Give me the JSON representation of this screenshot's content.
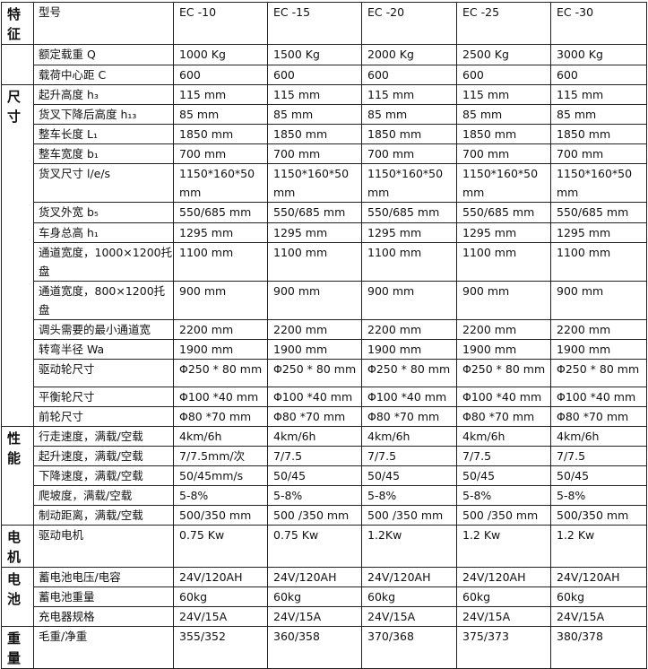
{
  "header": {
    "group": "特征",
    "label": "型号",
    "models": [
      "EC -10",
      "EC -15",
      "EC -20",
      "EC -25",
      "EC -30"
    ]
  },
  "groups": [
    {
      "name": "",
      "rows": [
        {
          "label": "额定载重 Q",
          "values": [
            "1000 Kg",
            "1500 Kg",
            "2000 Kg",
            "2500 Kg",
            "3000 Kg"
          ]
        },
        {
          "label": "载荷中心距 C",
          "values": [
            "600",
            "600",
            "600",
            "600",
            "600"
          ]
        }
      ]
    },
    {
      "name": "尺寸",
      "rows": [
        {
          "label": "起升高度 h₃",
          "values": [
            "115 mm",
            "115 mm",
            "115 mm",
            "115 mm",
            "115 mm"
          ]
        },
        {
          "label": "货叉下降后高度 h₁₃",
          "values": [
            "85 mm",
            "85 mm",
            "85 mm",
            "85 mm",
            "85 mm"
          ]
        },
        {
          "label": "整车长度 L₁",
          "values": [
            "1850 mm",
            "1850 mm",
            "1850 mm",
            "1850 mm",
            "1850 mm"
          ]
        },
        {
          "label": "整车宽度 b₁",
          "values": [
            "700 mm",
            "700 mm",
            "700 mm",
            "700 mm",
            "700 mm"
          ]
        },
        {
          "label": "货叉尺寸 l/e/s",
          "values": [
            "1150*160*50 mm",
            "1150*160*50 mm",
            "1150*160*50 mm",
            "1150*160*50 mm",
            "1150*160*50 mm"
          ]
        },
        {
          "label": "货叉外宽 b₅",
          "values": [
            "550/685 mm",
            "550/685 mm",
            "550/685 mm",
            "550/685 mm",
            "550/685 mm"
          ]
        },
        {
          "label": "车身总高 h₁",
          "values": [
            "1295 mm",
            "1295 mm",
            "1295 mm",
            "1295 mm",
            "1295 mm"
          ]
        },
        {
          "label": "通道宽度，1000×1200托盘",
          "values": [
            "1100 mm",
            "1100 mm",
            "1100 mm",
            "1100 mm",
            "1100 mm"
          ]
        },
        {
          "label": "通道宽度，800×1200托盘",
          "values": [
            "900 mm",
            "900 mm",
            "900 mm",
            "900 mm",
            "900 mm"
          ]
        },
        {
          "label": "调头需要的最小通道宽",
          "values": [
            "2200 mm",
            "2200 mm",
            "2200 mm",
            "2200 mm",
            "2200 mm"
          ]
        },
        {
          "label": "转弯半径 Wa",
          "values": [
            "1900 mm",
            "1900 mm",
            "1900 mm",
            "1900 mm",
            "1900 mm"
          ]
        },
        {
          "label": "驱动轮尺寸",
          "values": [
            "Φ250 * 80 mm",
            "Φ250 * 80 mm",
            "Φ250 * 80 mm",
            "Φ250 * 80 mm",
            "Φ250 * 80 mm"
          ]
        },
        {
          "label": "平衡轮尺寸",
          "values": [
            "Φ100 *40 mm",
            "Φ100 *40 mm",
            "Φ100 *40 mm",
            "Φ100 *40 mm",
            "Φ100 *40 mm"
          ]
        },
        {
          "label": "前轮尺寸",
          "values": [
            "Φ80 *70 mm",
            "Φ80 *70 mm",
            "Φ80 *70 mm",
            "Φ80 *70 mm",
            "Φ80 *70 mm"
          ]
        }
      ]
    },
    {
      "name": "性能",
      "rows": [
        {
          "label": "行走速度，满载/空载",
          "values": [
            "4km/6h",
            "4km/6h",
            "4km/6h",
            "4km/6h",
            "4km/6h"
          ]
        },
        {
          "label": "起升速度，满载/空载",
          "values": [
            "7/7.5mm/次",
            "7/7.5",
            "7/7.5",
            "7/7.5",
            "7/7.5"
          ]
        },
        {
          "label": "下降速度，满载/空载",
          "values": [
            "50/45mm/s",
            "50/45",
            "50/45",
            "50/45",
            "50/45"
          ]
        },
        {
          "label": "爬坡度，满载/空载",
          "values": [
            "5-8%",
            "5-8%",
            "5-8%",
            "5-8%",
            "5-8%"
          ]
        },
        {
          "label": "制动距离，满载/空载",
          "values": [
            "500/350 mm",
            "500 /350 mm",
            "500 /350 mm",
            "500 /350 mm",
            "500/350 mm"
          ]
        }
      ]
    },
    {
      "name": "电机",
      "rows": [
        {
          "label": "驱动电机",
          "values": [
            "0.75 Kw",
            "0.75 Kw",
            "1.2Kw",
            "1.2 Kw",
            "1.2 Kw"
          ]
        }
      ]
    },
    {
      "name": "电池",
      "rows": [
        {
          "label": "蓄电池电压/电容",
          "values": [
            "24V/120AH",
            "24V/120AH",
            "24V/120AH",
            "24V/120AH",
            "24V/120AH"
          ]
        },
        {
          "label": "蓄电池重量",
          "values": [
            "60kg",
            "60kg",
            "60kg",
            "60kg",
            "60kg"
          ]
        },
        {
          "label": "充电器规格",
          "values": [
            "24V/15A",
            "24V/15A",
            "24V/15A",
            "24V/15A",
            "24V/15A"
          ]
        }
      ]
    },
    {
      "name": "重量",
      "rows": [
        {
          "label": "毛重/净重",
          "values": [
            "355/352",
            "360/358",
            "370/368",
            "375/373",
            "380/378"
          ]
        }
      ]
    }
  ]
}
